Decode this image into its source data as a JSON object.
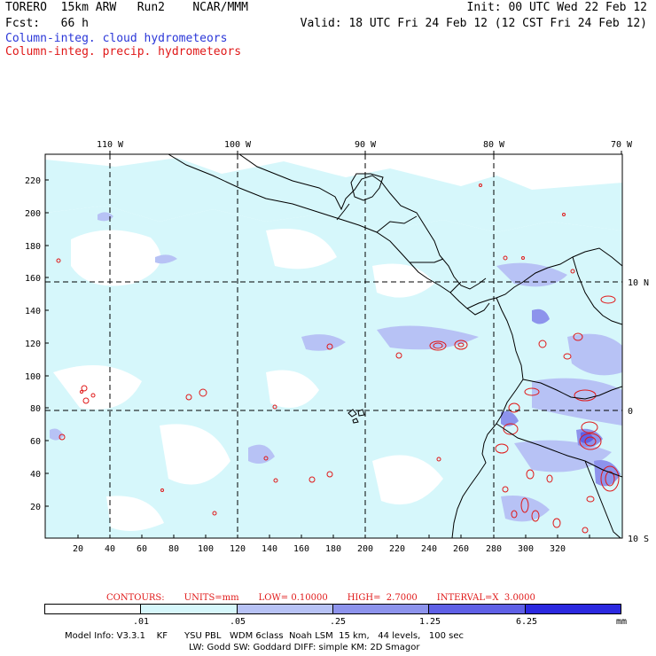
{
  "header": {
    "title": "TORERO  15km ARW   Run2    NCAR/MMM",
    "forecast": "Fcst:   66 h",
    "init": "Init: 00 UTC Wed 22 Feb 12",
    "valid": "Valid: 18 UTC Fri 24 Feb 12 (12 CST Fri 24 Feb 12)",
    "legend_cloud": "Column-integ. cloud hydrometeors",
    "legend_precip": "Column-integ. precip. hydrometeors"
  },
  "map": {
    "longitude_labels": [
      "110 W",
      "100 W",
      "90 W",
      "80 W",
      "70 W"
    ],
    "latitude_labels": [
      "10 N",
      "0",
      "10 S"
    ],
    "x_ticks": [
      "20",
      "40",
      "60",
      "80",
      "100",
      "120",
      "140",
      "160",
      "180",
      "200",
      "220",
      "240",
      "260",
      "280",
      "300",
      "320"
    ],
    "y_ticks": [
      "20",
      "40",
      "60",
      "80",
      "100",
      "120",
      "140",
      "160",
      "180",
      "200",
      "220"
    ],
    "colors": {
      "grid": "#000000",
      "coast": "#000000",
      "precip_contour": "#e01818",
      "shade_1": "#d6f7fb",
      "shade_2": "#b7c2f5",
      "shade_3": "#8d93ec",
      "shade_4": "#5f60e6",
      "shade_5": "#2c29e0"
    }
  },
  "contours": {
    "title": "CONTOURS:",
    "units": "UNITS=mm",
    "low": "LOW= 0.10000",
    "high": "HIGH=  2.7000",
    "interval": "INTERVAL=X  3.0000"
  },
  "colorbar": {
    "labels": [
      ".01",
      ".05",
      ".25",
      "1.25",
      "6.25",
      "mm"
    ],
    "colors": [
      "#ffffff",
      "#d6f7fb",
      "#b7c2f5",
      "#8d93ec",
      "#5f60e6",
      "#2c29e0"
    ]
  },
  "footer": {
    "line1": "Model Info: V3.3.1    KF      YSU PBL   WDM 6class  Noah LSM  15 km,   44 levels,   100 sec",
    "line2": "LW: Godd SW: Goddard DIFF: simple KM: 2D Smagor"
  }
}
